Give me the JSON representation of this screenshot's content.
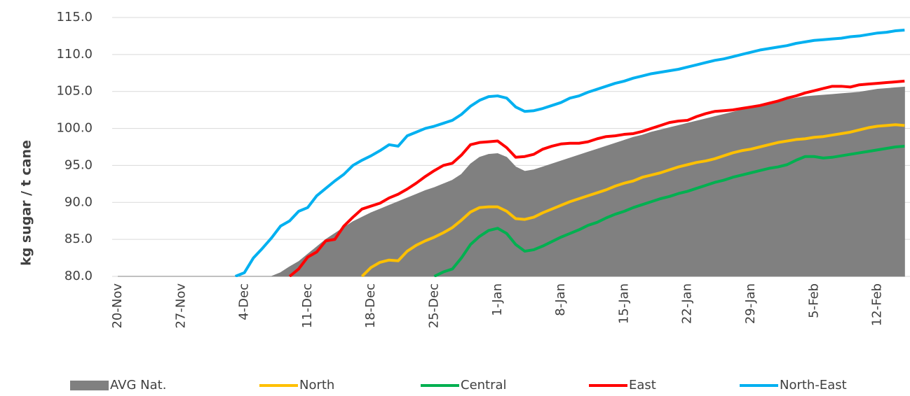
{
  "chart_data": {
    "type": "line",
    "y_label": "kg sugar / t cane",
    "categories": [
      "20-Nov",
      null,
      null,
      null,
      null,
      null,
      null,
      "27-Nov",
      null,
      null,
      null,
      null,
      null,
      null,
      "4-Dec",
      null,
      null,
      null,
      null,
      null,
      null,
      "11-Dec",
      null,
      null,
      null,
      null,
      null,
      null,
      "18-Dec",
      null,
      null,
      null,
      null,
      null,
      null,
      "25-Dec",
      null,
      null,
      null,
      null,
      null,
      null,
      "1-Jan",
      null,
      null,
      null,
      null,
      null,
      null,
      "8-Jan",
      null,
      null,
      null,
      null,
      null,
      null,
      "15-Jan",
      null,
      null,
      null,
      null,
      null,
      null,
      "22-Jan",
      null,
      null,
      null,
      null,
      null,
      null,
      "29-Jan",
      null,
      null,
      null,
      null,
      null,
      null,
      "5-Feb",
      null,
      null,
      null,
      null,
      null,
      null,
      "12-Feb",
      null,
      null,
      null
    ],
    "series": [
      {
        "name": "AVG Nat.",
        "kind": "area",
        "color": "#808080",
        "values": [
          80,
          80,
          80,
          80,
          80,
          80,
          80,
          80,
          80,
          80,
          80,
          80,
          80,
          80,
          80,
          80,
          80,
          80,
          80.5,
          81.3,
          82.0,
          83.0,
          84.0,
          85.0,
          85.8,
          86.6,
          87.4,
          88.0,
          88.6,
          89.1,
          89.6,
          90.1,
          90.6,
          91.1,
          91.6,
          92.0,
          92.5,
          93.0,
          93.8,
          95.2,
          96.1,
          96.5,
          96.6,
          96.1,
          94.8,
          94.2,
          94.4,
          94.8,
          95.2,
          95.6,
          96.0,
          96.4,
          96.8,
          97.2,
          97.6,
          98.0,
          98.4,
          98.8,
          99.1,
          99.5,
          99.8,
          100.1,
          100.4,
          100.7,
          101.0,
          101.3,
          101.6,
          101.9,
          102.2,
          102.5,
          102.8,
          103.0,
          103.3,
          103.6,
          103.9,
          104.1,
          104.3,
          104.4,
          104.5,
          104.6,
          104.7,
          104.8,
          104.9,
          105.1,
          105.3,
          105.4,
          105.5,
          105.6
        ]
      },
      {
        "name": "North",
        "color": "#ffc000",
        "values": [
          null,
          null,
          null,
          null,
          null,
          null,
          null,
          null,
          null,
          null,
          null,
          null,
          null,
          null,
          null,
          null,
          null,
          null,
          null,
          null,
          null,
          null,
          null,
          null,
          null,
          null,
          null,
          80.0,
          81.2,
          81.9,
          82.2,
          82.1,
          83.4,
          84.2,
          84.8,
          85.3,
          85.9,
          86.6,
          87.6,
          88.7,
          89.3,
          89.4,
          89.4,
          88.8,
          87.8,
          87.7,
          88.0,
          88.6,
          89.1,
          89.6,
          90.1,
          90.5,
          90.9,
          91.3,
          91.7,
          92.2,
          92.6,
          92.9,
          93.4,
          93.7,
          94.0,
          94.4,
          94.8,
          95.1,
          95.4,
          95.6,
          95.9,
          96.3,
          96.7,
          97.0,
          97.2,
          97.5,
          97.8,
          98.1,
          98.3,
          98.5,
          98.6,
          98.8,
          98.9,
          99.1,
          99.3,
          99.5,
          99.8,
          100.1,
          100.3,
          100.4,
          100.5,
          100.4
        ]
      },
      {
        "name": "Central",
        "color": "#00b050",
        "values": [
          null,
          null,
          null,
          null,
          null,
          null,
          null,
          null,
          null,
          null,
          null,
          null,
          null,
          null,
          null,
          null,
          null,
          null,
          null,
          null,
          null,
          null,
          null,
          null,
          null,
          null,
          null,
          null,
          null,
          null,
          null,
          null,
          null,
          null,
          null,
          80.0,
          80.6,
          81.0,
          82.5,
          84.3,
          85.4,
          86.2,
          86.5,
          85.8,
          84.3,
          83.4,
          83.6,
          84.1,
          84.7,
          85.3,
          85.8,
          86.3,
          86.9,
          87.3,
          87.9,
          88.4,
          88.8,
          89.3,
          89.7,
          90.1,
          90.5,
          90.8,
          91.2,
          91.5,
          91.9,
          92.3,
          92.7,
          93.0,
          93.4,
          93.7,
          94.0,
          94.3,
          94.6,
          94.8,
          95.1,
          95.7,
          96.2,
          96.2,
          96.0,
          96.1,
          96.3,
          96.5,
          96.7,
          96.9,
          97.1,
          97.3,
          97.5,
          97.6
        ]
      },
      {
        "name": "East",
        "color": "#ff0000",
        "values": [
          null,
          null,
          null,
          null,
          null,
          null,
          null,
          null,
          null,
          null,
          null,
          null,
          null,
          null,
          null,
          null,
          null,
          null,
          null,
          80.0,
          81.0,
          82.6,
          83.3,
          84.8,
          85.0,
          86.8,
          88.0,
          89.1,
          89.5,
          89.9,
          90.6,
          91.1,
          91.8,
          92.6,
          93.5,
          94.3,
          95.0,
          95.3,
          96.4,
          97.8,
          98.1,
          98.2,
          98.3,
          97.4,
          96.1,
          96.2,
          96.5,
          97.2,
          97.6,
          97.9,
          98.0,
          98.0,
          98.2,
          98.6,
          98.9,
          99.0,
          99.2,
          99.3,
          99.6,
          100.0,
          100.4,
          100.8,
          101.0,
          101.1,
          101.6,
          102.0,
          102.3,
          102.4,
          102.5,
          102.7,
          102.9,
          103.1,
          103.4,
          103.7,
          104.1,
          104.4,
          104.8,
          105.1,
          105.4,
          105.7,
          105.7,
          105.6,
          105.9,
          106.0,
          106.1,
          106.2,
          106.3,
          106.4
        ]
      },
      {
        "name": "North-East",
        "color": "#00b0f0",
        "values": [
          null,
          null,
          null,
          null,
          null,
          null,
          null,
          null,
          null,
          null,
          null,
          null,
          null,
          80.0,
          80.5,
          82.5,
          83.8,
          85.2,
          86.8,
          87.5,
          88.8,
          89.3,
          90.9,
          91.9,
          92.9,
          93.8,
          95.0,
          95.7,
          96.3,
          97.0,
          97.8,
          97.6,
          99.0,
          99.5,
          100.0,
          100.3,
          100.7,
          101.1,
          101.9,
          103.0,
          103.8,
          104.3,
          104.4,
          104.1,
          102.9,
          102.3,
          102.4,
          102.7,
          103.1,
          103.5,
          104.1,
          104.4,
          104.9,
          105.3,
          105.7,
          106.1,
          106.4,
          106.8,
          107.1,
          107.4,
          107.6,
          107.8,
          108.0,
          108.3,
          108.6,
          108.9,
          109.2,
          109.4,
          109.7,
          110.0,
          110.3,
          110.6,
          110.8,
          111.0,
          111.2,
          111.5,
          111.7,
          111.9,
          112.0,
          112.1,
          112.2,
          112.4,
          112.5,
          112.7,
          112.9,
          113.0,
          113.2,
          113.3
        ]
      }
    ],
    "ylim": [
      80,
      115
    ],
    "yticks": [
      {
        "value": 80,
        "label": "80.0"
      },
      {
        "value": 85,
        "label": "85.0"
      },
      {
        "value": 90,
        "label": "90.0"
      },
      {
        "value": 95,
        "label": "95.0"
      },
      {
        "value": 100,
        "label": "100.0"
      },
      {
        "value": 105,
        "label": "105.0"
      },
      {
        "value": 110,
        "label": "110.0"
      },
      {
        "value": 115,
        "label": "115.0"
      }
    ],
    "grid": true,
    "legend": "bottom"
  }
}
